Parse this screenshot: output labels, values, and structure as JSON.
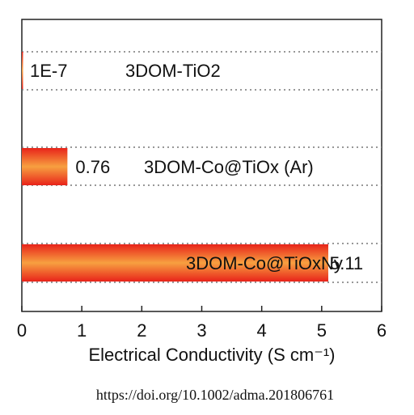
{
  "chart_data": {
    "type": "barh",
    "categories": [
      "3DOM-TiO2",
      "3DOM-Co@TiOx (Ar)",
      "3DOM-Co@TiOxNy"
    ],
    "values": [
      1e-07,
      0.76,
      5.11
    ],
    "value_labels": [
      "1E-7",
      "0.76",
      "5.11"
    ],
    "color": "#f4782a",
    "xlabel": "Electrical Conductivity (S cm⁻¹)",
    "xlim": [
      0,
      6
    ],
    "xticks": [
      0,
      1,
      2,
      3,
      4,
      5,
      6
    ],
    "source": "https://doi.org/10.1002/adma.201806761"
  }
}
